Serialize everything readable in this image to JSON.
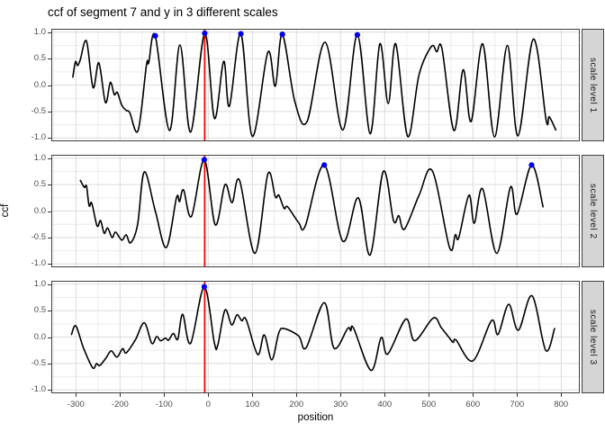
{
  "chart_data": {
    "type": "line",
    "title": "ccf of segment 7 and y in 3 different scales",
    "xlabel": "position",
    "ylabel": "ccf",
    "xlim": [
      -356,
      842
    ],
    "ylim": [
      -1.07,
      1.06
    ],
    "x_ticks": [
      -300,
      -200,
      -100,
      0,
      100,
      200,
      300,
      400,
      500,
      600,
      700,
      800
    ],
    "x_minor_ticks": [
      -350,
      -250,
      -150,
      -50,
      50,
      150,
      250,
      350,
      450,
      550,
      650,
      750
    ],
    "y_ticks": [
      1.0,
      0.5,
      0.0,
      -0.5,
      -1.0
    ],
    "y_minor_ticks": [
      0.75,
      0.25,
      -0.25,
      -0.75
    ],
    "grid": "major+minor",
    "legend": "none",
    "facet_strip_position": "right",
    "reference_vline_x": -8,
    "facets": [
      {
        "label": "scale level 1",
        "series": [
          [
            -307,
            0.15
          ],
          [
            -301,
            0.44
          ],
          [
            -296,
            0.37
          ],
          [
            -290,
            0.48
          ],
          [
            -276,
            0.83
          ],
          [
            -261,
            -0.05
          ],
          [
            -248,
            0.42
          ],
          [
            -233,
            -0.33
          ],
          [
            -222,
            0.05
          ],
          [
            -213,
            -0.18
          ],
          [
            -206,
            -0.14
          ],
          [
            -196,
            -0.38
          ],
          [
            -186,
            -0.48
          ],
          [
            -178,
            -0.52
          ],
          [
            -159,
            -0.86
          ],
          [
            -140,
            0.38
          ],
          [
            -135,
            0.42
          ],
          [
            -120,
            0.93
          ],
          [
            -88,
            -0.86
          ],
          [
            -64,
            0.76
          ],
          [
            -40,
            -0.89
          ],
          [
            -8,
            0.98
          ],
          [
            14,
            -0.63
          ],
          [
            35,
            0.45
          ],
          [
            48,
            -0.4
          ],
          [
            74,
            0.97
          ],
          [
            100,
            -0.97
          ],
          [
            135,
            0.62
          ],
          [
            152,
            -0.02
          ],
          [
            168,
            0.96
          ],
          [
            196,
            -0.3
          ],
          [
            224,
            -0.69
          ],
          [
            265,
            0.81
          ],
          [
            305,
            -0.85
          ],
          [
            338,
            0.95
          ],
          [
            367,
            -0.92
          ],
          [
            389,
            0.78
          ],
          [
            408,
            -0.35
          ],
          [
            425,
            0.78
          ],
          [
            452,
            -0.97
          ],
          [
            478,
            0.2
          ],
          [
            506,
            0.73
          ],
          [
            518,
            0.63
          ],
          [
            530,
            0.68
          ],
          [
            557,
            -0.86
          ],
          [
            578,
            0.29
          ],
          [
            596,
            -0.69
          ],
          [
            622,
            0.78
          ],
          [
            649,
            -0.98
          ],
          [
            678,
            0.75
          ],
          [
            702,
            -0.96
          ],
          [
            737,
            0.87
          ],
          [
            766,
            -0.66
          ],
          [
            773,
            -0.6
          ],
          [
            788,
            -0.85
          ]
        ],
        "marked_peaks": [
          [
            -120,
            0.93
          ],
          [
            -8,
            0.98
          ],
          [
            74,
            0.97
          ],
          [
            168,
            0.96
          ],
          [
            338,
            0.95
          ]
        ]
      },
      {
        "label": "scale level 2",
        "series": [
          [
            -290,
            0.58
          ],
          [
            -281,
            0.45
          ],
          [
            -276,
            0.47
          ],
          [
            -270,
            0.1
          ],
          [
            -264,
            0.15
          ],
          [
            -252,
            -0.28
          ],
          [
            -244,
            -0.18
          ],
          [
            -236,
            -0.42
          ],
          [
            -228,
            -0.32
          ],
          [
            -218,
            -0.5
          ],
          [
            -210,
            -0.4
          ],
          [
            -196,
            -0.55
          ],
          [
            -186,
            -0.45
          ],
          [
            -176,
            -0.6
          ],
          [
            -160,
            -0.25
          ],
          [
            -145,
            0.74
          ],
          [
            -120,
            0.0
          ],
          [
            -95,
            -0.69
          ],
          [
            -72,
            0.25
          ],
          [
            -65,
            0.18
          ],
          [
            -56,
            0.4
          ],
          [
            -38,
            -0.1
          ],
          [
            -9,
            0.97
          ],
          [
            16,
            -0.26
          ],
          [
            38,
            0.5
          ],
          [
            54,
            0.16
          ],
          [
            71,
            0.58
          ],
          [
            106,
            -0.8
          ],
          [
            135,
            0.7
          ],
          [
            152,
            0.27
          ],
          [
            160,
            0.3
          ],
          [
            172,
            0.05
          ],
          [
            180,
            0.08
          ],
          [
            205,
            -0.22
          ],
          [
            220,
            -0.28
          ],
          [
            263,
            0.87
          ],
          [
            305,
            -0.57
          ],
          [
            340,
            0.25
          ],
          [
            367,
            -0.83
          ],
          [
            397,
            0.75
          ],
          [
            420,
            -0.18
          ],
          [
            432,
            -0.09
          ],
          [
            445,
            -0.34
          ],
          [
            478,
            0.3
          ],
          [
            508,
            0.76
          ],
          [
            547,
            -0.69
          ],
          [
            560,
            -0.45
          ],
          [
            568,
            -0.5
          ],
          [
            591,
            0.3
          ],
          [
            603,
            -0.23
          ],
          [
            622,
            0.42
          ],
          [
            654,
            -0.8
          ],
          [
            685,
            0.45
          ],
          [
            700,
            -0.06
          ],
          [
            733,
            0.87
          ],
          [
            759,
            0.08
          ]
        ],
        "marked_peaks": [
          [
            -9,
            0.97
          ],
          [
            263,
            0.87
          ],
          [
            733,
            0.87
          ]
        ]
      },
      {
        "label": "scale level 3",
        "series": [
          [
            -310,
            0.05
          ],
          [
            -300,
            0.21
          ],
          [
            -283,
            -0.2
          ],
          [
            -262,
            -0.58
          ],
          [
            -253,
            -0.5
          ],
          [
            -246,
            -0.54
          ],
          [
            -232,
            -0.4
          ],
          [
            -220,
            -0.26
          ],
          [
            -207,
            -0.38
          ],
          [
            -194,
            -0.22
          ],
          [
            -186,
            -0.3
          ],
          [
            -165,
            -0.05
          ],
          [
            -145,
            0.27
          ],
          [
            -128,
            -0.12
          ],
          [
            -117,
            0.01
          ],
          [
            -108,
            -0.07
          ],
          [
            -97,
            -0.02
          ],
          [
            -90,
            -0.06
          ],
          [
            -79,
            0.07
          ],
          [
            -69,
            -0.04
          ],
          [
            -58,
            0.43
          ],
          [
            -40,
            -0.12
          ],
          [
            -9,
            0.95
          ],
          [
            14,
            -0.12
          ],
          [
            22,
            -0.14
          ],
          [
            38,
            0.51
          ],
          [
            53,
            0.23
          ],
          [
            65,
            0.42
          ],
          [
            76,
            0.31
          ],
          [
            86,
            0.33
          ],
          [
            112,
            -0.33
          ],
          [
            127,
            0.04
          ],
          [
            144,
            -0.43
          ],
          [
            160,
            0.08
          ],
          [
            172,
            0.16
          ],
          [
            205,
            0.02
          ],
          [
            222,
            -0.2
          ],
          [
            263,
            0.65
          ],
          [
            285,
            -0.21
          ],
          [
            316,
            0.16
          ],
          [
            323,
            0.12
          ],
          [
            330,
            0.16
          ],
          [
            369,
            -0.63
          ],
          [
            392,
            -0.01
          ],
          [
            407,
            -0.32
          ],
          [
            448,
            0.34
          ],
          [
            468,
            -0.07
          ],
          [
            510,
            0.36
          ],
          [
            528,
            0.18
          ],
          [
            545,
            0.0
          ],
          [
            555,
            -0.1
          ],
          [
            562,
            -0.06
          ],
          [
            600,
            -0.45
          ],
          [
            642,
            0.31
          ],
          [
            657,
            0.05
          ],
          [
            681,
            0.62
          ],
          [
            703,
            0.13
          ],
          [
            734,
            0.78
          ],
          [
            765,
            -0.25
          ],
          [
            785,
            0.16
          ]
        ],
        "marked_peaks": [
          [
            -9,
            0.95
          ]
        ]
      }
    ],
    "colors": {
      "line": "#000000",
      "reference_line": "#ff0000",
      "peak_marker": "#0000ee",
      "grid_major": "#dbdbdb",
      "grid_minor": "#ececec",
      "panel_border": "#404040",
      "strip_background": "#d5d5d5",
      "strip_text": "#1a1a1a",
      "tick_label": "#4d4d4d"
    }
  }
}
